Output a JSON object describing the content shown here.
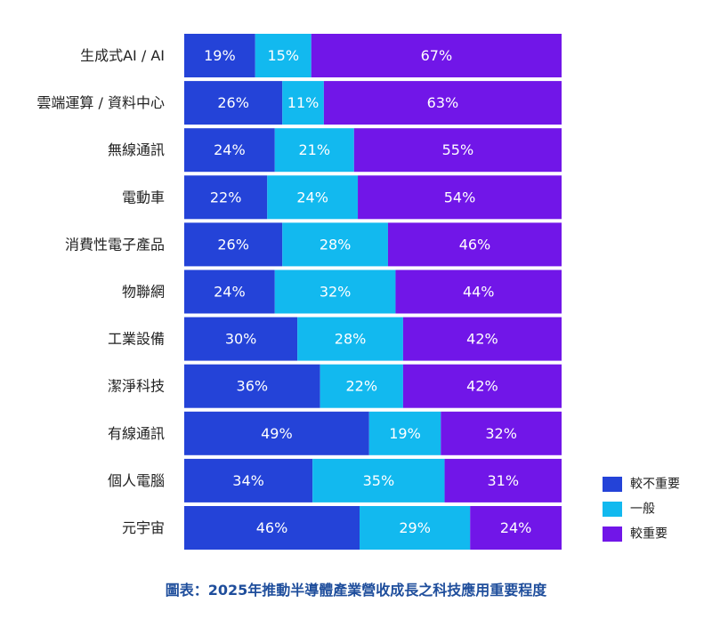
{
  "chart_data": {
    "type": "bar",
    "orientation": "horizontal",
    "stacked": true,
    "normalized_percent": true,
    "categories": [
      "生成式AI / AI",
      "雲端運算 / 資料中心",
      "無線通訊",
      "電動車",
      "消費性電子產品",
      "物聯網",
      "工業設備",
      "潔淨科技",
      "有線通訊",
      "個人電腦",
      "元宇宙"
    ],
    "series": [
      {
        "name": "較不重要",
        "color": "#2443d8",
        "values": [
          19,
          26,
          24,
          22,
          26,
          24,
          30,
          36,
          49,
          34,
          46
        ],
        "labels": [
          "19%",
          "26%",
          "24%",
          "22%",
          "26%",
          "24%",
          "30%",
          "36%",
          "49%",
          "34%",
          "46%"
        ]
      },
      {
        "name": "一般",
        "color": "#12b9ef",
        "values": [
          15,
          11,
          21,
          24,
          28,
          32,
          28,
          22,
          19,
          35,
          29
        ],
        "labels": [
          "15%",
          "11%",
          "21%",
          "24%",
          "28%",
          "32%",
          "28%",
          "22%",
          "19%",
          "35%",
          "29%"
        ]
      },
      {
        "name": "較重要",
        "color": "#7116e8",
        "values": [
          67,
          63,
          55,
          54,
          46,
          44,
          42,
          42,
          32,
          31,
          24
        ],
        "labels": [
          "67%",
          "63%",
          "55%",
          "54%",
          "46%",
          "44%",
          "42%",
          "42%",
          "32%",
          "31%",
          "24%"
        ]
      }
    ],
    "legend_position": "bottom-right",
    "grid": false
  },
  "caption": "圖表：2025年推動半導體產業營收成長之科技應用重要程度"
}
